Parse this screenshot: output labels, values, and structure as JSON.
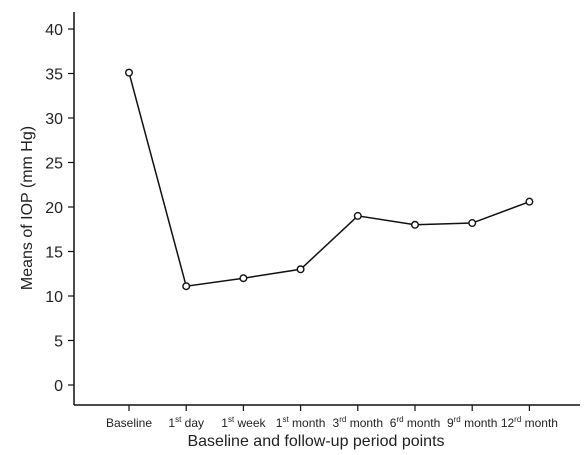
{
  "chart_data": {
    "type": "line",
    "categories": [
      {
        "base": "Baseline",
        "sup": "",
        "tail": ""
      },
      {
        "base": "1",
        "sup": "st",
        "tail": " day"
      },
      {
        "base": "1",
        "sup": "st",
        "tail": " week"
      },
      {
        "base": "1",
        "sup": "st",
        "tail": " month"
      },
      {
        "base": "3",
        "sup": "rd",
        "tail": " month"
      },
      {
        "base": "6",
        "sup": "rd",
        "tail": " month"
      },
      {
        "base": "9",
        "sup": "rd",
        "tail": " month"
      },
      {
        "base": "12",
        "sup": "rd",
        "tail": " month"
      }
    ],
    "values": [
      35.1,
      11.1,
      12.0,
      13.0,
      19.0,
      18.0,
      18.2,
      20.6
    ],
    "xlabel": "Baseline and follow-up period points",
    "ylabel": "Means of IOP (mm Hg)",
    "ylim": [
      0,
      40
    ],
    "yticks": [
      "0",
      "5",
      "10",
      "15",
      "20",
      "25",
      "30",
      "35",
      "40"
    ],
    "grid": false,
    "line_color": "#111111",
    "marker": "open-circle"
  }
}
